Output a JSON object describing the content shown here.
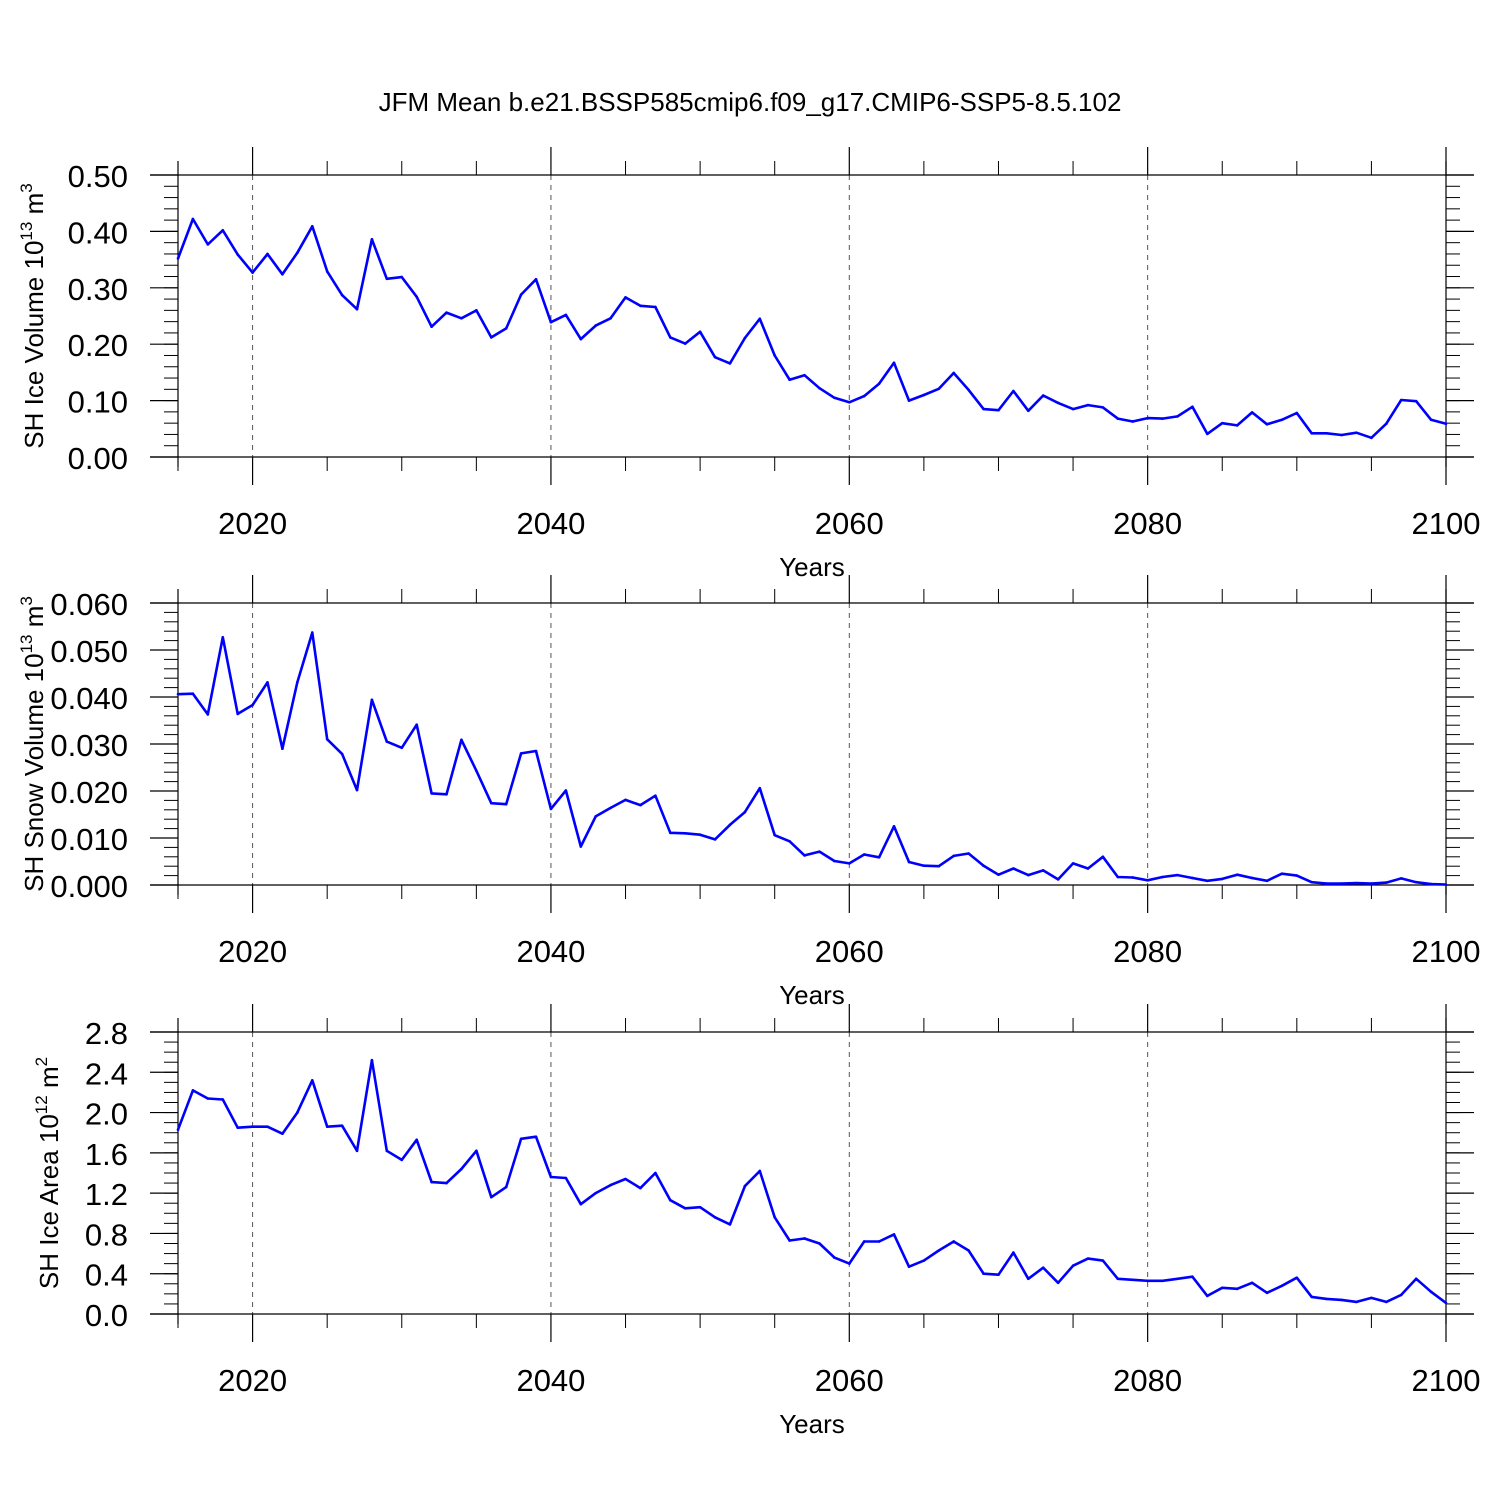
{
  "title": "JFM Mean b.e21.BSSP585cmip6.f09_g17.CMIP6-SSP5-8.5.102",
  "line_color": "#0000ff",
  "chart_data": [
    {
      "type": "line",
      "xlabel": "Years",
      "ylabel": "SH Ice Volume 10",
      "ylabel_sup": "13",
      "ylabel_unit": " m",
      "ylabel_unit_sup": "3",
      "xlim": [
        2015,
        2100
      ],
      "ylim": [
        0.0,
        0.5
      ],
      "grid": "dashed vertical at x ticks",
      "x_ticks": [
        2020,
        2040,
        2060,
        2080,
        2100
      ],
      "x_tick_labels": [
        "2020",
        "2040",
        "2060",
        "2080",
        "2100"
      ],
      "y_ticks": [
        0.0,
        0.1,
        0.2,
        0.3,
        0.4,
        0.5
      ],
      "y_tick_labels": [
        "0.00",
        "0.10",
        "0.20",
        "0.30",
        "0.40",
        "0.50"
      ],
      "x_minor_step": 5,
      "y_minor_step": 0.02,
      "series": [
        {
          "x": [
            2015,
            2016,
            2017,
            2018,
            2019,
            2020,
            2021,
            2022,
            2023,
            2024,
            2025,
            2026,
            2027,
            2028,
            2029,
            2030,
            2031,
            2032,
            2033,
            2034,
            2035,
            2036,
            2037,
            2038,
            2039,
            2040,
            2041,
            2042,
            2043,
            2044,
            2045,
            2046,
            2047,
            2048,
            2049,
            2050,
            2051,
            2052,
            2053,
            2054,
            2055,
            2056,
            2057,
            2058,
            2059,
            2060,
            2061,
            2062,
            2063,
            2064,
            2065,
            2066,
            2067,
            2068,
            2069,
            2070,
            2071,
            2072,
            2073,
            2074,
            2075,
            2076,
            2077,
            2078,
            2079,
            2080,
            2081,
            2082,
            2083,
            2084,
            2085,
            2086,
            2087,
            2088,
            2089,
            2090,
            2091,
            2092,
            2093,
            2094,
            2095,
            2096,
            2097,
            2098,
            2099,
            2100
          ],
          "y": [
            0.352,
            0.422,
            0.377,
            0.402,
            0.359,
            0.327,
            0.36,
            0.324,
            0.362,
            0.409,
            0.329,
            0.287,
            0.262,
            0.386,
            0.316,
            0.319,
            0.284,
            0.231,
            0.256,
            0.246,
            0.26,
            0.212,
            0.228,
            0.288,
            0.315,
            0.239,
            0.252,
            0.209,
            0.233,
            0.246,
            0.283,
            0.268,
            0.266,
            0.212,
            0.201,
            0.222,
            0.177,
            0.166,
            0.211,
            0.245,
            0.18,
            0.137,
            0.145,
            0.122,
            0.105,
            0.097,
            0.108,
            0.13,
            0.167,
            0.1,
            0.11,
            0.121,
            0.149,
            0.119,
            0.085,
            0.083,
            0.117,
            0.082,
            0.109,
            0.096,
            0.085,
            0.092,
            0.088,
            0.068,
            0.063,
            0.069,
            0.068,
            0.072,
            0.089,
            0.041,
            0.06,
            0.056,
            0.079,
            0.058,
            0.066,
            0.078,
            0.042,
            0.042,
            0.039,
            0.043,
            0.034,
            0.059,
            0.101,
            0.099,
            0.066,
            0.059
          ]
        }
      ]
    },
    {
      "type": "line",
      "xlabel": "Years",
      "ylabel": "SH Snow Volume 10",
      "ylabel_sup": "13",
      "ylabel_unit": " m",
      "ylabel_unit_sup": "3",
      "xlim": [
        2015,
        2100
      ],
      "ylim": [
        0.0,
        0.06
      ],
      "grid": "dashed vertical at x ticks",
      "x_ticks": [
        2020,
        2040,
        2060,
        2080,
        2100
      ],
      "x_tick_labels": [
        "2020",
        "2040",
        "2060",
        "2080",
        "2100"
      ],
      "y_ticks": [
        0.0,
        0.01,
        0.02,
        0.03,
        0.04,
        0.05,
        0.06
      ],
      "y_tick_labels": [
        "0.000",
        "0.010",
        "0.020",
        "0.030",
        "0.040",
        "0.050",
        "0.060"
      ],
      "x_minor_step": 5,
      "y_minor_step": 0.002,
      "series": [
        {
          "x": [
            2015,
            2016,
            2017,
            2018,
            2019,
            2020,
            2021,
            2022,
            2023,
            2024,
            2025,
            2026,
            2027,
            2028,
            2029,
            2030,
            2031,
            2032,
            2033,
            2034,
            2035,
            2036,
            2037,
            2038,
            2039,
            2040,
            2041,
            2042,
            2043,
            2044,
            2045,
            2046,
            2047,
            2048,
            2049,
            2050,
            2051,
            2052,
            2053,
            2054,
            2055,
            2056,
            2057,
            2058,
            2059,
            2060,
            2061,
            2062,
            2063,
            2064,
            2065,
            2066,
            2067,
            2068,
            2069,
            2070,
            2071,
            2072,
            2073,
            2074,
            2075,
            2076,
            2077,
            2078,
            2079,
            2080,
            2081,
            2082,
            2083,
            2084,
            2085,
            2086,
            2087,
            2088,
            2089,
            2090,
            2091,
            2092,
            2093,
            2094,
            2095,
            2096,
            2097,
            2098,
            2099,
            2100
          ],
          "y": [
            0.0406,
            0.0407,
            0.0363,
            0.0527,
            0.0364,
            0.0383,
            0.0431,
            0.029,
            0.0431,
            0.0537,
            0.031,
            0.0279,
            0.0202,
            0.0394,
            0.0305,
            0.0292,
            0.0341,
            0.0195,
            0.0193,
            0.0309,
            0.0243,
            0.0174,
            0.0172,
            0.028,
            0.0285,
            0.0162,
            0.0201,
            0.0082,
            0.0146,
            0.0164,
            0.0181,
            0.017,
            0.019,
            0.0111,
            0.011,
            0.0107,
            0.0097,
            0.0128,
            0.0155,
            0.0206,
            0.0106,
            0.0093,
            0.0063,
            0.0071,
            0.0051,
            0.0046,
            0.0065,
            0.0059,
            0.0125,
            0.0049,
            0.0041,
            0.004,
            0.0062,
            0.0067,
            0.0041,
            0.0022,
            0.0035,
            0.0021,
            0.0031,
            0.0012,
            0.0046,
            0.0035,
            0.006,
            0.0017,
            0.0016,
            0.001,
            0.0017,
            0.0021,
            0.0015,
            0.0009,
            0.0013,
            0.0022,
            0.0015,
            0.0009,
            0.0024,
            0.002,
            0.0006,
            0.0003,
            0.0003,
            0.0004,
            0.0003,
            0.0005,
            0.0014,
            0.0006,
            0.0002,
            0.0001
          ]
        }
      ]
    },
    {
      "type": "line",
      "xlabel": "Years",
      "ylabel": "SH Ice Area 10",
      "ylabel_sup": "12",
      "ylabel_unit": " m",
      "ylabel_unit_sup": "2",
      "xlim": [
        2015,
        2100
      ],
      "ylim": [
        0.0,
        2.8
      ],
      "grid": "dashed vertical at x ticks",
      "x_ticks": [
        2020,
        2040,
        2060,
        2080,
        2100
      ],
      "x_tick_labels": [
        "2020",
        "2040",
        "2060",
        "2080",
        "2100"
      ],
      "y_ticks": [
        0.0,
        0.4,
        0.8,
        1.2,
        1.6,
        2.0,
        2.4,
        2.8
      ],
      "y_tick_labels": [
        "0.0",
        "0.4",
        "0.8",
        "1.2",
        "1.6",
        "2.0",
        "2.4",
        "2.8"
      ],
      "x_minor_step": 5,
      "y_minor_step": 0.1,
      "series": [
        {
          "x": [
            2015,
            2016,
            2017,
            2018,
            2019,
            2020,
            2021,
            2022,
            2023,
            2024,
            2025,
            2026,
            2027,
            2028,
            2029,
            2030,
            2031,
            2032,
            2033,
            2034,
            2035,
            2036,
            2037,
            2038,
            2039,
            2040,
            2041,
            2042,
            2043,
            2044,
            2045,
            2046,
            2047,
            2048,
            2049,
            2050,
            2051,
            2052,
            2053,
            2054,
            2055,
            2056,
            2057,
            2058,
            2059,
            2060,
            2061,
            2062,
            2063,
            2064,
            2065,
            2066,
            2067,
            2068,
            2069,
            2070,
            2071,
            2072,
            2073,
            2074,
            2075,
            2076,
            2077,
            2078,
            2079,
            2080,
            2081,
            2082,
            2083,
            2084,
            2085,
            2086,
            2087,
            2088,
            2089,
            2090,
            2091,
            2092,
            2093,
            2094,
            2095,
            2096,
            2097,
            2098,
            2099,
            2100
          ],
          "y": [
            1.83,
            2.22,
            2.14,
            2.13,
            1.85,
            1.86,
            1.86,
            1.79,
            2.0,
            2.32,
            1.86,
            1.87,
            1.62,
            2.52,
            1.62,
            1.53,
            1.73,
            1.31,
            1.3,
            1.44,
            1.62,
            1.16,
            1.26,
            1.74,
            1.76,
            1.36,
            1.35,
            1.09,
            1.2,
            1.28,
            1.34,
            1.25,
            1.4,
            1.13,
            1.05,
            1.06,
            0.96,
            0.89,
            1.27,
            1.42,
            0.96,
            0.73,
            0.75,
            0.7,
            0.56,
            0.5,
            0.72,
            0.72,
            0.79,
            0.47,
            0.53,
            0.63,
            0.72,
            0.63,
            0.4,
            0.39,
            0.61,
            0.35,
            0.46,
            0.31,
            0.48,
            0.55,
            0.53,
            0.35,
            0.34,
            0.33,
            0.33,
            0.35,
            0.37,
            0.18,
            0.26,
            0.25,
            0.31,
            0.21,
            0.28,
            0.36,
            0.17,
            0.15,
            0.14,
            0.12,
            0.16,
            0.12,
            0.19,
            0.35,
            0.22,
            0.11
          ]
        }
      ]
    }
  ]
}
